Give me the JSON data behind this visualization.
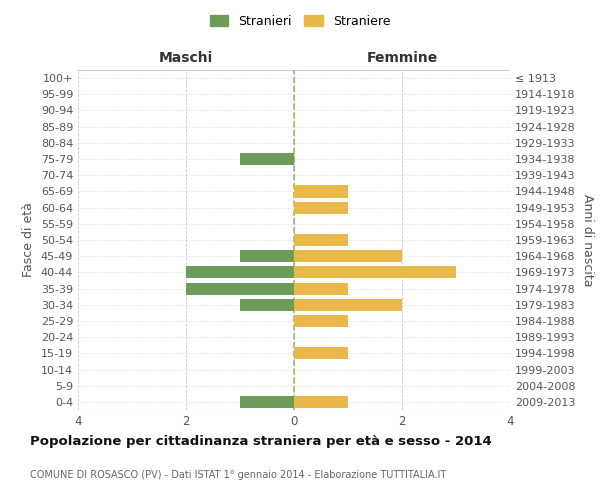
{
  "age_groups": [
    "100+",
    "95-99",
    "90-94",
    "85-89",
    "80-84",
    "75-79",
    "70-74",
    "65-69",
    "60-64",
    "55-59",
    "50-54",
    "45-49",
    "40-44",
    "35-39",
    "30-34",
    "25-29",
    "20-24",
    "15-19",
    "10-14",
    "5-9",
    "0-4"
  ],
  "birth_years": [
    "≤ 1913",
    "1914-1918",
    "1919-1923",
    "1924-1928",
    "1929-1933",
    "1934-1938",
    "1939-1943",
    "1944-1948",
    "1949-1953",
    "1954-1958",
    "1959-1963",
    "1964-1968",
    "1969-1973",
    "1974-1978",
    "1979-1983",
    "1984-1988",
    "1989-1993",
    "1994-1998",
    "1999-2003",
    "2004-2008",
    "2009-2013"
  ],
  "maschi": [
    0,
    0,
    0,
    0,
    0,
    1,
    0,
    0,
    0,
    0,
    0,
    1,
    2,
    2,
    1,
    0,
    0,
    0,
    0,
    0,
    1
  ],
  "femmine": [
    0,
    0,
    0,
    0,
    0,
    0,
    0,
    1,
    1,
    0,
    1,
    2,
    3,
    1,
    2,
    1,
    0,
    1,
    0,
    0,
    1
  ],
  "maschi_color": "#6d9b5a",
  "femmine_color": "#e8b84b",
  "center_line_color": "#b8a96a",
  "grid_color": "#cccccc",
  "background_color": "#ffffff",
  "title": "Popolazione per cittadinanza straniera per età e sesso - 2014",
  "subtitle": "COMUNE DI ROSASCO (PV) - Dati ISTAT 1° gennaio 2014 - Elaborazione TUTTITALIA.IT",
  "xlabel_left": "Maschi",
  "xlabel_right": "Femmine",
  "ylabel_left": "Fasce di età",
  "ylabel_right": "Anni di nascita",
  "xlim": 4,
  "legend_stranieri": "Stranieri",
  "legend_straniere": "Straniere",
  "bar_height": 0.75
}
